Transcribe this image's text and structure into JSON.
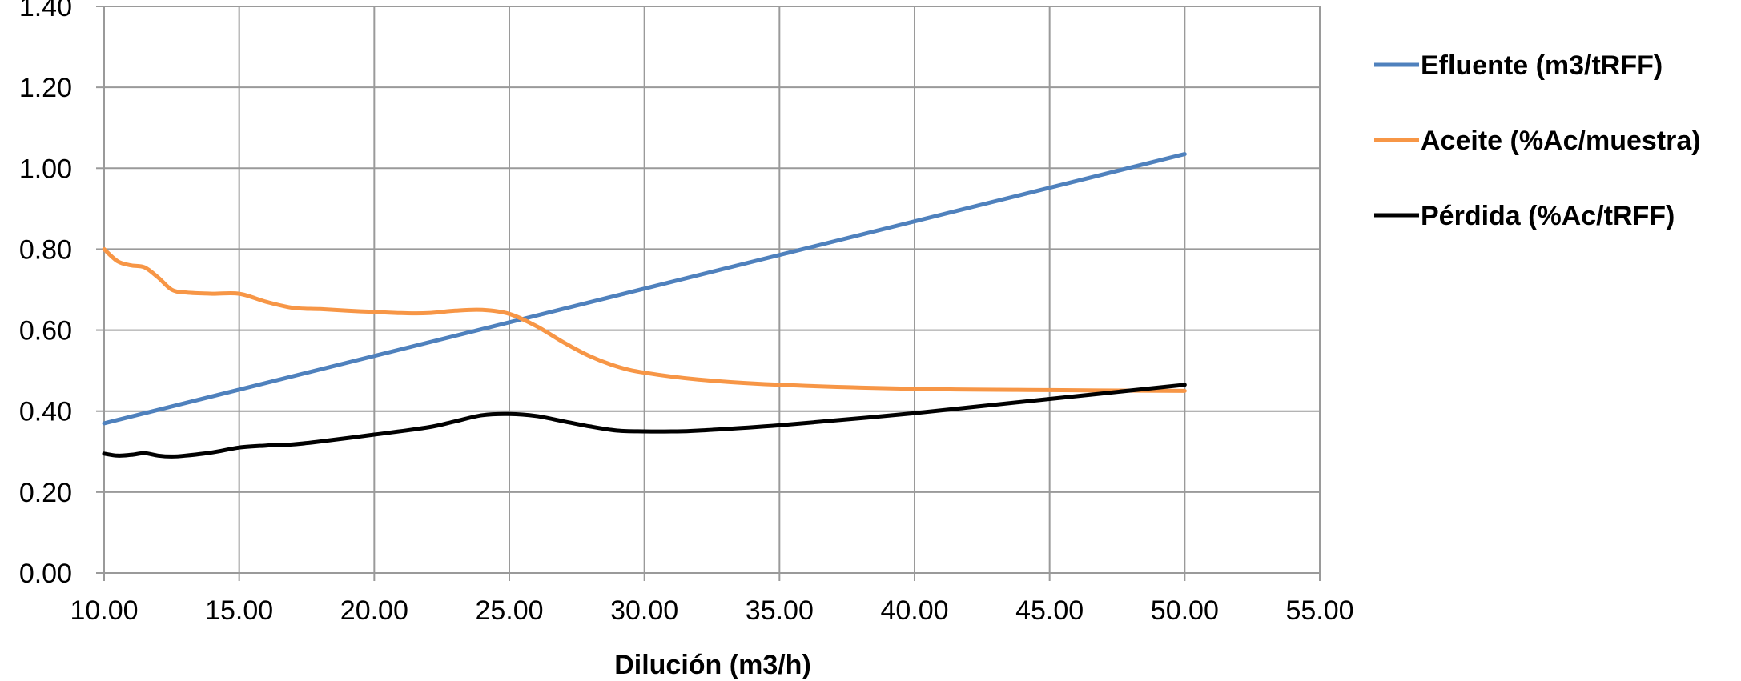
{
  "chart_data": {
    "type": "line",
    "title": "",
    "xlabel": "Dilución (m3/h)",
    "ylabel": "",
    "xlim": [
      10,
      55
    ],
    "ylim": [
      0,
      1.4
    ],
    "x_ticks": [
      10,
      15,
      20,
      25,
      30,
      35,
      40,
      45,
      50,
      55
    ],
    "y_ticks": [
      0,
      0.2,
      0.4,
      0.6,
      0.8,
      1.0,
      1.2,
      1.4
    ],
    "x_tick_labels": [
      "10.00",
      "15.00",
      "20.00",
      "25.00",
      "30.00",
      "35.00",
      "40.00",
      "45.00",
      "50.00",
      "55.00"
    ],
    "y_tick_labels": [
      "0.00",
      "0.20",
      "0.40",
      "0.60",
      "0.80",
      "1.00",
      "1.20",
      "1.40"
    ],
    "grid": true,
    "legend_position": "right-top",
    "series": [
      {
        "name": "Efluente (m3/tRFF)",
        "color": "#4F81BD",
        "x": [
          10,
          50
        ],
        "y": [
          0.37,
          1.035
        ]
      },
      {
        "name": "Aceite (%Ac/muestra)",
        "color": "#F79646",
        "x": [
          10,
          10.5,
          11,
          11.5,
          12,
          12.5,
          13,
          14,
          15,
          16,
          17,
          18,
          19,
          20,
          21,
          22,
          23,
          24,
          25,
          26,
          27,
          28,
          29,
          30,
          32,
          35,
          40,
          45,
          50
        ],
        "y": [
          0.8,
          0.77,
          0.76,
          0.755,
          0.73,
          0.7,
          0.693,
          0.69,
          0.69,
          0.67,
          0.655,
          0.652,
          0.648,
          0.645,
          0.642,
          0.642,
          0.648,
          0.65,
          0.64,
          0.61,
          0.57,
          0.535,
          0.51,
          0.495,
          0.478,
          0.465,
          0.455,
          0.452,
          0.45
        ]
      },
      {
        "name": "Pérdida (%Ac/tRFF)",
        "color": "#000000",
        "x": [
          10,
          10.5,
          11,
          11.5,
          12,
          12.5,
          13,
          14,
          15,
          16,
          17,
          18,
          20,
          22,
          23,
          24,
          25,
          26,
          27,
          28,
          29,
          30,
          31,
          32,
          35,
          40,
          45,
          50
        ],
        "y": [
          0.295,
          0.29,
          0.292,
          0.296,
          0.29,
          0.288,
          0.29,
          0.298,
          0.31,
          0.315,
          0.318,
          0.325,
          0.342,
          0.36,
          0.375,
          0.39,
          0.393,
          0.388,
          0.375,
          0.362,
          0.352,
          0.35,
          0.35,
          0.352,
          0.365,
          0.395,
          0.43,
          0.465
        ]
      }
    ]
  }
}
